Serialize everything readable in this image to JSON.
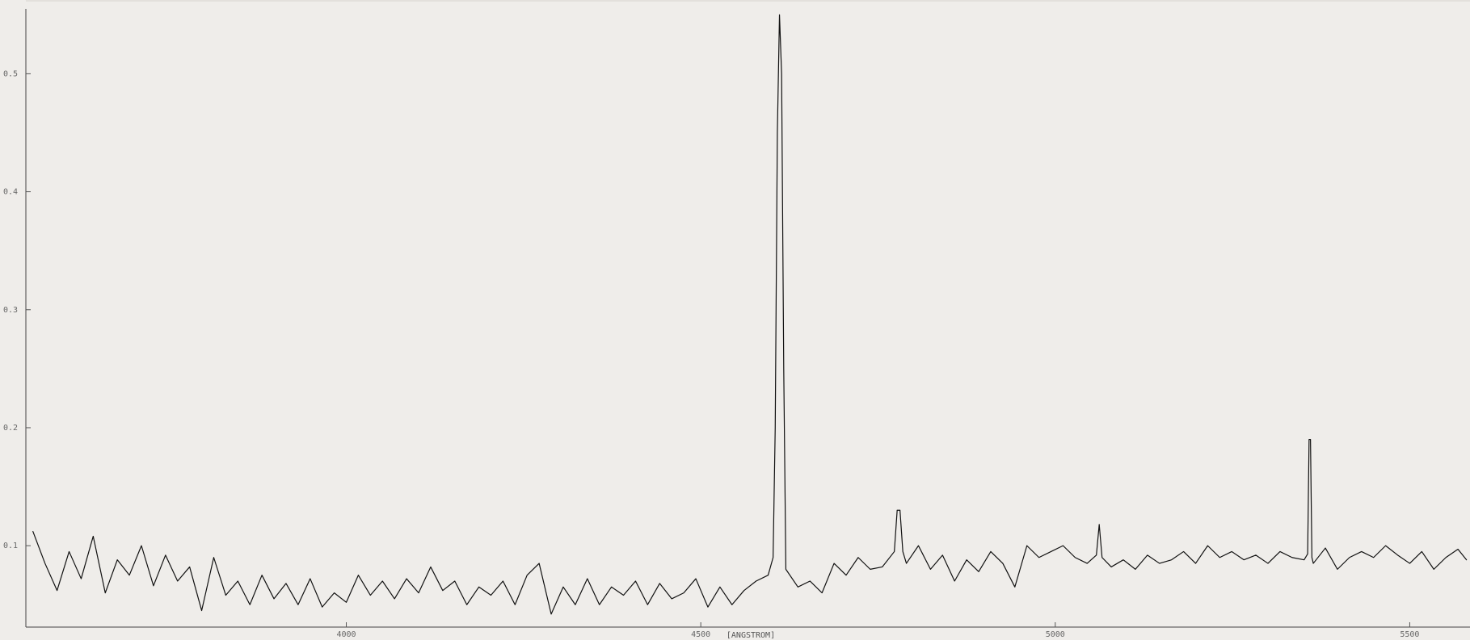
{
  "chart_data": {
    "type": "line",
    "xlabel": "[ANGSTROM]",
    "ylabel": "",
    "title": "",
    "xlim": [
      3548,
      5585
    ],
    "ylim": [
      0.031,
      0.555
    ],
    "x_ticks": [
      4000,
      4500,
      5000,
      5500
    ],
    "x_tick_labels": [
      "4000",
      "4500",
      "5000",
      "5500"
    ],
    "y_ticks": [
      0.1,
      0.2,
      0.3,
      0.4,
      0.5
    ],
    "y_tick_labels": [
      "0.1",
      "0.2",
      "0.3",
      "0.4",
      "0.5"
    ],
    "grid": false,
    "series": [
      {
        "x": [
          3558,
          3575,
          3592,
          3609,
          3626,
          3643,
          3660,
          3677,
          3694,
          3711,
          3728,
          3745,
          3762,
          3779,
          3796,
          3813,
          3830,
          3847,
          3864,
          3881,
          3898,
          3915,
          3932,
          3949,
          3966,
          3983,
          4000,
          4017,
          4034,
          4051,
          4068,
          4085,
          4102,
          4119,
          4136,
          4153,
          4170,
          4187,
          4204,
          4221,
          4238,
          4255,
          4272,
          4289,
          4306,
          4323,
          4340,
          4357,
          4374,
          4391,
          4408,
          4425,
          4442,
          4459,
          4476,
          4493,
          4510,
          4527,
          4544,
          4561,
          4578,
          4595,
          4602,
          4605,
          4608,
          4611,
          4614,
          4617,
          4620,
          4637,
          4654,
          4671,
          4688,
          4705,
          4722,
          4739,
          4756,
          4773,
          4777,
          4781,
          4785,
          4790,
          4807,
          4824,
          4841,
          4858,
          4875,
          4892,
          4909,
          4926,
          4943,
          4960,
          4977,
          4994,
          5011,
          5028,
          5045,
          5058,
          5062,
          5066,
          5079,
          5096,
          5113,
          5130,
          5147,
          5164,
          5181,
          5198,
          5215,
          5232,
          5249,
          5266,
          5283,
          5300,
          5317,
          5334,
          5351,
          5356,
          5358,
          5360,
          5362,
          5364,
          5381,
          5398,
          5415,
          5432,
          5449,
          5466,
          5483,
          5500,
          5517,
          5534,
          5551,
          5568,
          5580
        ],
        "y": [
          0.112,
          0.085,
          0.062,
          0.095,
          0.072,
          0.108,
          0.06,
          0.088,
          0.075,
          0.1,
          0.066,
          0.092,
          0.07,
          0.082,
          0.045,
          0.09,
          0.058,
          0.07,
          0.05,
          0.075,
          0.055,
          0.068,
          0.05,
          0.072,
          0.048,
          0.06,
          0.052,
          0.075,
          0.058,
          0.07,
          0.055,
          0.072,
          0.06,
          0.082,
          0.062,
          0.07,
          0.05,
          0.065,
          0.058,
          0.07,
          0.05,
          0.075,
          0.085,
          0.042,
          0.065,
          0.05,
          0.072,
          0.05,
          0.065,
          0.058,
          0.07,
          0.05,
          0.068,
          0.055,
          0.06,
          0.072,
          0.048,
          0.065,
          0.05,
          0.062,
          0.07,
          0.075,
          0.09,
          0.2,
          0.45,
          0.55,
          0.5,
          0.25,
          0.08,
          0.065,
          0.07,
          0.06,
          0.085,
          0.075,
          0.09,
          0.08,
          0.082,
          0.095,
          0.13,
          0.13,
          0.095,
          0.085,
          0.1,
          0.08,
          0.092,
          0.07,
          0.088,
          0.078,
          0.095,
          0.085,
          0.065,
          0.1,
          0.09,
          0.095,
          0.1,
          0.09,
          0.085,
          0.092,
          0.118,
          0.09,
          0.082,
          0.088,
          0.08,
          0.092,
          0.085,
          0.088,
          0.095,
          0.085,
          0.1,
          0.09,
          0.095,
          0.088,
          0.092,
          0.085,
          0.095,
          0.09,
          0.088,
          0.093,
          0.19,
          0.19,
          0.09,
          0.085,
          0.098,
          0.08,
          0.09,
          0.095,
          0.09,
          0.1,
          0.092,
          0.085,
          0.095,
          0.08,
          0.09,
          0.097,
          0.088
        ]
      }
    ]
  }
}
